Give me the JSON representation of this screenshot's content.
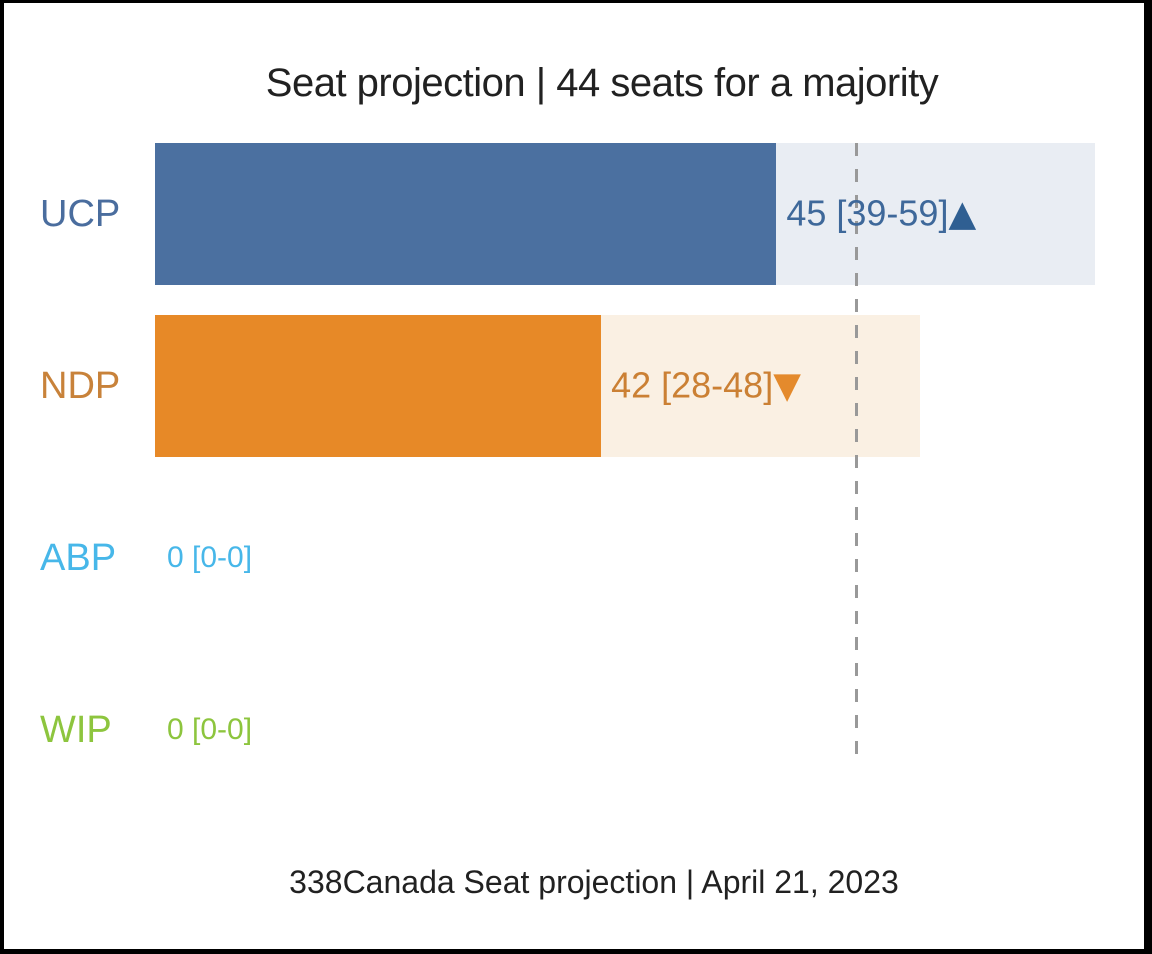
{
  "chart_data": {
    "type": "bar",
    "title": "Seat projection | 44 seats for a majority",
    "footer": "338Canada Seat projection | April 21, 2023",
    "x_axis": {
      "min": 0,
      "max": 59,
      "unit": "seats",
      "grid": false
    },
    "majority": {
      "seats": 44,
      "line_color": "#999999",
      "line_style": "dashed"
    },
    "series": [
      {
        "party": "UCP",
        "seats": 45,
        "ci_low": 39,
        "ci_high": 59,
        "trend": "up",
        "value_label": "45 [39-59]",
        "bar_color": "#4b70a0",
        "band_color": "#e9edf3",
        "label_color": "#4a6d9e",
        "value_color": "#3e689a",
        "trend_color": "#2f5f92"
      },
      {
        "party": "NDP",
        "seats": 42,
        "ci_low": 28,
        "ci_high": 48,
        "trend": "down",
        "value_label": "42 [28-48]",
        "bar_color": "#e78927",
        "band_color": "#faf0e3",
        "label_color": "#c8823a",
        "value_color": "#cb8034",
        "trend_color": "#e48a2c"
      },
      {
        "party": "ABP",
        "seats": 0,
        "ci_low": 0,
        "ci_high": 0,
        "trend": null,
        "value_label": "0 [0-0]",
        "bar_color": "#47b7e9",
        "band_color": null,
        "label_color": "#47b7e9",
        "value_color": "#47b7e9",
        "trend_color": null
      },
      {
        "party": "WIP",
        "seats": 0,
        "ci_low": 0,
        "ci_high": 0,
        "trend": null,
        "value_label": "0 [0-0]",
        "bar_color": "#8dc53e",
        "band_color": null,
        "label_color": "#8dc53e",
        "value_color": "#8dc53e",
        "trend_color": null
      }
    ]
  }
}
